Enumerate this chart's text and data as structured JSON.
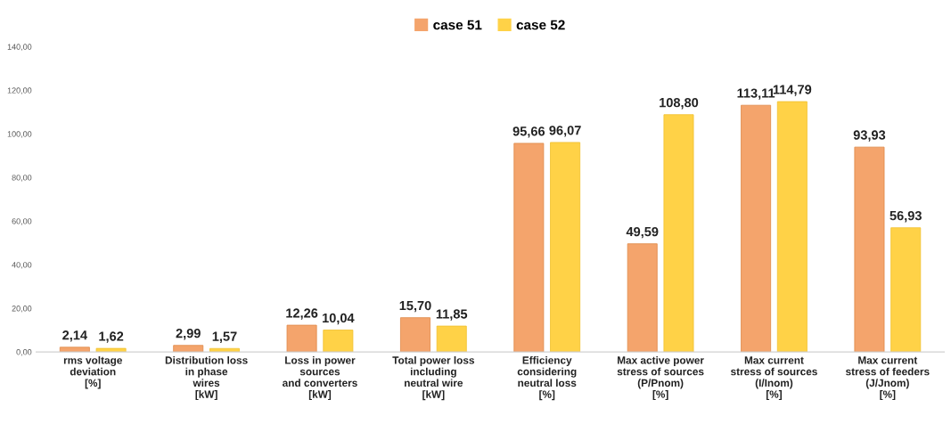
{
  "chart_data": {
    "type": "bar",
    "categories": [
      "rms voltage\ndeviation\n[%]",
      "Distribution loss\nin phase\nwires\n[kW]",
      "Loss in power\nsources\nand converters\n[kW]",
      "Total power loss\nincluding\nneutral wire\n[kW]",
      "Efficiency\nconsidering\nneutral loss\n[%]",
      "Max active power\nstress of sources\n(P/Pnom)\n[%]",
      "Max current\nstress of sources\n(I/Inom)\n[%]",
      "Max current\nstress of feeders\n(J/Jnom)\n[%]"
    ],
    "series": [
      {
        "name": "case 51",
        "color": "#f4a46c",
        "values": [
          2.14,
          2.99,
          12.26,
          15.7,
          95.66,
          49.59,
          113.11,
          93.93
        ],
        "value_labels": [
          "2,14",
          "2,99",
          "12,26",
          "15,70",
          "95,66",
          "49,59",
          "113,11",
          "93,93"
        ]
      },
      {
        "name": "case 52",
        "color": "#ffd247",
        "values": [
          1.62,
          1.57,
          10.04,
          11.85,
          96.07,
          108.8,
          114.79,
          56.93
        ],
        "value_labels": [
          "1,62",
          "1,57",
          "10,04",
          "11,85",
          "96,07",
          "108,80",
          "114,79",
          "56,93"
        ]
      }
    ],
    "ylim": [
      0,
      140
    ],
    "yticks": [
      {
        "value": 0,
        "label": "0,00"
      },
      {
        "value": 20,
        "label": "20,00"
      },
      {
        "value": 40,
        "label": "40,00"
      },
      {
        "value": 60,
        "label": "60,00"
      },
      {
        "value": 80,
        "label": "80,00"
      },
      {
        "value": 100,
        "label": "100,00"
      },
      {
        "value": 120,
        "label": "120,00"
      },
      {
        "value": 140,
        "label": "140,00"
      }
    ],
    "grid": false,
    "legend": "top"
  }
}
